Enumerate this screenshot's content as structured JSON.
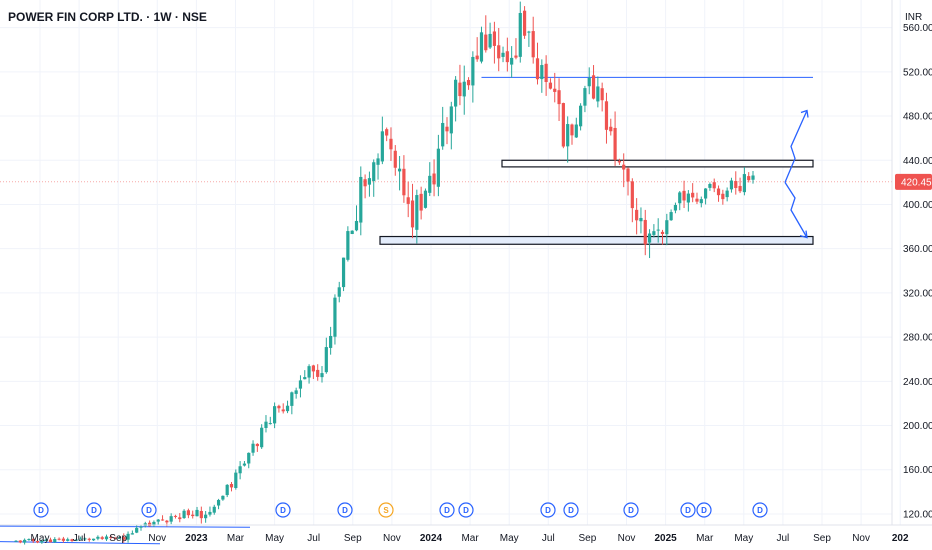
{
  "title": "POWER FIN CORP LTD. · 1W · NSE",
  "currency": "INR",
  "current_price_label": "420.45",
  "colors": {
    "up": "#26a69a",
    "down": "#ef5350",
    "drawing": "#2962ff",
    "price_line": "#ef5350",
    "grid": "#f0f3fa",
    "dividend_marker": "#2962ff",
    "split_marker": "#f5a623"
  },
  "chart_data": {
    "type": "candlestick",
    "title": "POWER FIN CORP LTD. · 1W · NSE",
    "currency": "INR",
    "y_ticks": [
      120,
      160,
      200,
      240,
      280,
      320,
      360,
      400,
      440,
      480,
      520,
      560
    ],
    "ylim": [
      110,
      585
    ],
    "current_price": 420.45,
    "x_ticks": [
      {
        "label": "May",
        "bold": false
      },
      {
        "label": "Jul",
        "bold": false
      },
      {
        "label": "Sep",
        "bold": false
      },
      {
        "label": "Nov",
        "bold": false
      },
      {
        "label": "2023",
        "bold": true
      },
      {
        "label": "Mar",
        "bold": false
      },
      {
        "label": "May",
        "bold": false
      },
      {
        "label": "Jul",
        "bold": false
      },
      {
        "label": "Sep",
        "bold": false
      },
      {
        "label": "Nov",
        "bold": false
      },
      {
        "label": "2024",
        "bold": true
      },
      {
        "label": "Mar",
        "bold": false
      },
      {
        "label": "May",
        "bold": false
      },
      {
        "label": "Jul",
        "bold": false
      },
      {
        "label": "Sep",
        "bold": false
      },
      {
        "label": "Nov",
        "bold": false
      },
      {
        "label": "2025",
        "bold": true
      },
      {
        "label": "Mar",
        "bold": false
      },
      {
        "label": "May",
        "bold": false
      },
      {
        "label": "Jul",
        "bold": false
      },
      {
        "label": "Sep",
        "bold": false
      },
      {
        "label": "Nov",
        "bold": false
      },
      {
        "label": "202",
        "bold": true
      }
    ],
    "event_markers": [
      {
        "label": "D",
        "kind": "dividend"
      },
      {
        "label": "D",
        "kind": "dividend"
      },
      {
        "label": "D",
        "kind": "dividend"
      },
      {
        "label": "D",
        "kind": "dividend"
      },
      {
        "label": "D",
        "kind": "dividend"
      },
      {
        "label": "S",
        "kind": "split"
      },
      {
        "label": "D",
        "kind": "dividend"
      },
      {
        "label": "D",
        "kind": "dividend"
      },
      {
        "label": "D",
        "kind": "dividend"
      },
      {
        "label": "D",
        "kind": "dividend"
      },
      {
        "label": "D",
        "kind": "dividend"
      },
      {
        "label": "D",
        "kind": "dividend"
      },
      {
        "label": "D",
        "kind": "dividend"
      },
      {
        "label": "D",
        "kind": "dividend"
      },
      {
        "label": "D",
        "kind": "dividend"
      }
    ],
    "segments": [
      {
        "weeks": 25,
        "start": 95,
        "end": 98,
        "noise": 2,
        "seed": 11
      },
      {
        "weeks": 12,
        "start": 98,
        "end": 118,
        "noise": 4,
        "seed": 23
      },
      {
        "weeks": 10,
        "start": 118,
        "end": 122,
        "noise": 5,
        "seed": 31
      },
      {
        "weeks": 12,
        "start": 122,
        "end": 200,
        "noise": 6,
        "seed": 41
      },
      {
        "weeks": 10,
        "start": 200,
        "end": 250,
        "noise": 8,
        "seed": 53
      },
      {
        "weeks": 3,
        "start": 250,
        "end": 240,
        "noise": 8,
        "seed": 61
      },
      {
        "weeks": 6,
        "start": 240,
        "end": 380,
        "noise": 10,
        "seed": 67
      },
      {
        "weeks": 4,
        "start": 380,
        "end": 420,
        "noise": 15,
        "seed": 71
      },
      {
        "weeks": 5,
        "start": 420,
        "end": 460,
        "noise": 15,
        "seed": 79
      },
      {
        "weeks": 6,
        "start": 460,
        "end": 395,
        "noise": 18,
        "seed": 83
      },
      {
        "weeks": 4,
        "start": 395,
        "end": 420,
        "noise": 14,
        "seed": 89
      },
      {
        "weeks": 6,
        "start": 420,
        "end": 500,
        "noise": 18,
        "seed": 97
      },
      {
        "weeks": 8,
        "start": 500,
        "end": 560,
        "noise": 18,
        "seed": 101
      },
      {
        "weeks": 4,
        "start": 560,
        "end": 520,
        "noise": 18,
        "seed": 103
      },
      {
        "weeks": 3,
        "start": 520,
        "end": 560,
        "noise": 16,
        "seed": 107
      },
      {
        "weeks": 12,
        "start": 560,
        "end": 450,
        "noise": 16,
        "seed": 109
      },
      {
        "weeks": 4,
        "start": 450,
        "end": 515,
        "noise": 14,
        "seed": 113
      },
      {
        "weeks": 10,
        "start": 515,
        "end": 395,
        "noise": 16,
        "seed": 127
      },
      {
        "weeks": 4,
        "start": 395,
        "end": 365,
        "noise": 14,
        "seed": 131
      },
      {
        "weeks": 6,
        "start": 365,
        "end": 405,
        "noise": 12,
        "seed": 137
      },
      {
        "weeks": 18,
        "start": 405,
        "end": 420,
        "noise": 10,
        "seed": 139
      }
    ],
    "horizontal_lines": [
      {
        "y": 515,
        "style": "line"
      },
      {
        "y_low": 434,
        "y_high": 440,
        "style": "zone"
      },
      {
        "y_low": 364,
        "y_high": 371,
        "style": "zone"
      }
    ],
    "projections": [
      {
        "direction": "up",
        "from_price": 420,
        "to_price": 485
      },
      {
        "direction": "down",
        "from_price": 420,
        "to_price": 370
      }
    ]
  }
}
